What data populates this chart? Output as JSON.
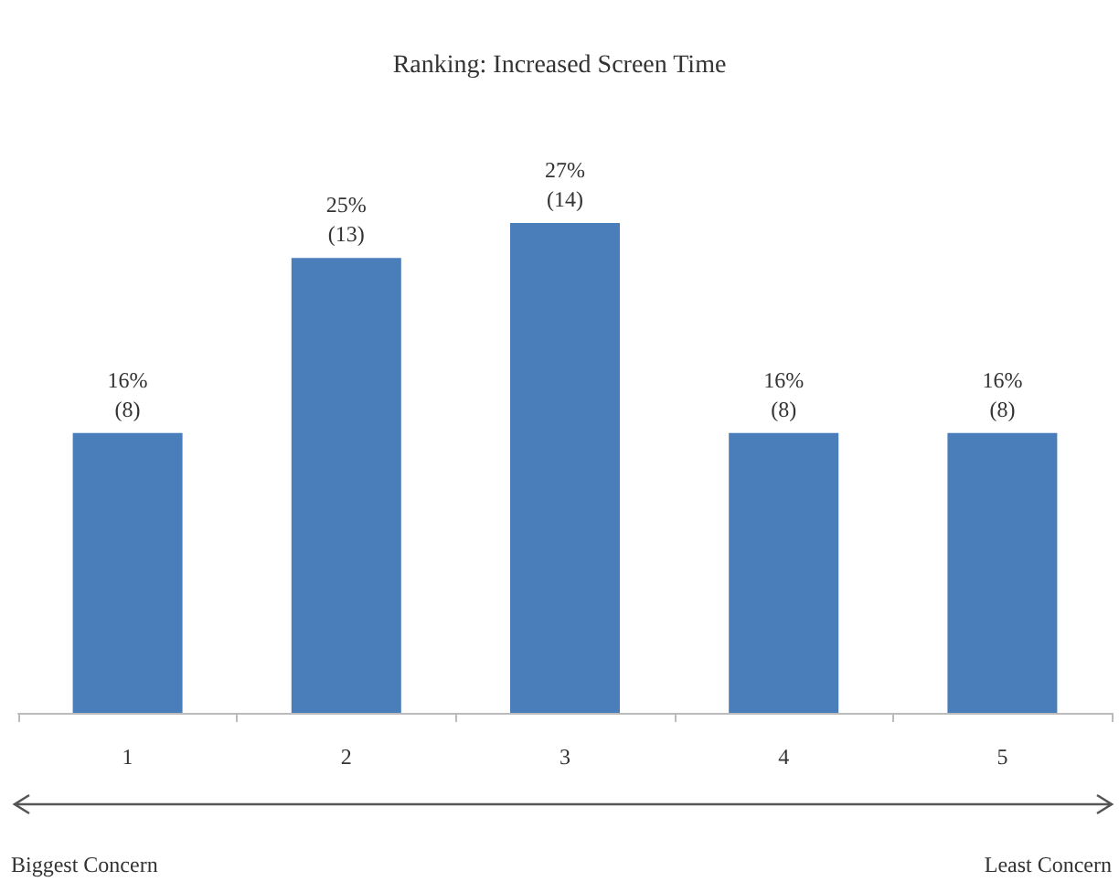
{
  "chart_data": {
    "type": "bar",
    "title": "Ranking: Increased Screen Time",
    "categories": [
      "1",
      "2",
      "3",
      "4",
      "5"
    ],
    "values": [
      8,
      13,
      14,
      8,
      8
    ],
    "value_labels": [
      "16%\n(8)",
      "25%\n(13)",
      "27%\n(14)",
      "16%\n(8)",
      "16%\n(8)"
    ],
    "color": "#4a7ebb",
    "annotations": [
      "Biggest Concern",
      "Least Concern"
    ]
  }
}
